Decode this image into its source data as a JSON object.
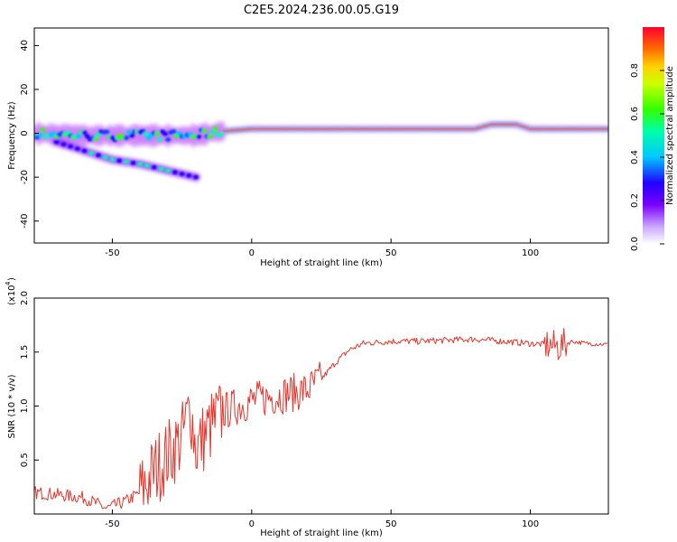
{
  "title": "C2E5.2024.236.00.05.G19",
  "colors": {
    "snr_line": "#e8332a",
    "spectrogram_ridge": "#ff2a1a",
    "spectrogram_halo": "#b84dff",
    "axis": "#000000"
  },
  "chart_data": [
    {
      "type": "heatmap",
      "xlabel": "Height of straight line (km)",
      "ylabel": "Frequency (Hz)",
      "xlim": [
        -78,
        128
      ],
      "ylim": [
        -50,
        48
      ],
      "xticks": [
        -50,
        0,
        50,
        100
      ],
      "yticks": [
        -40,
        -20,
        0,
        20,
        40
      ],
      "colorbar": {
        "label": "Normalized spectral amplitude",
        "range": [
          0.0,
          1.0
        ],
        "ticks": [
          "0.0",
          "0.2",
          "0.4",
          "0.6",
          "0.8"
        ],
        "colormap": "rainbow (violet to red)"
      },
      "ridges": [
        {
          "description": "main carrier",
          "x": [
            -78,
            -60,
            -40,
            -20,
            -10,
            0,
            20,
            40,
            60,
            80,
            86,
            95,
            100,
            128
          ],
          "y": [
            0,
            -1,
            -1,
            -1,
            1,
            2,
            2,
            2,
            2,
            2,
            4,
            4,
            2,
            2
          ]
        },
        {
          "description": "lower branch",
          "x": [
            -70,
            -60,
            -50,
            -40,
            -30,
            -20
          ],
          "y": [
            -4,
            -8,
            -12,
            -14,
            -17,
            -20
          ]
        }
      ],
      "grid": false
    },
    {
      "type": "line",
      "xlabel": "Height of straight line (km)",
      "ylabel": "SNR (10 * v/v)",
      "scale_label": "(x10",
      "scale_exponent": "4",
      "xlim": [
        -78,
        128
      ],
      "ylim": [
        0,
        2.0
      ],
      "xticks": [
        -50,
        0,
        50,
        100
      ],
      "yticks": [
        "0.5",
        "1.0",
        "1.5",
        "2.0"
      ],
      "grid": false,
      "series": [
        {
          "x": [
            -78,
            -70,
            -60,
            -52,
            -45,
            -40,
            -35,
            -30,
            -25,
            -22,
            -20,
            -15,
            -10,
            -5,
            0,
            10,
            20,
            25,
            30,
            35,
            40,
            50,
            60,
            70,
            80,
            90,
            100,
            105,
            110,
            113,
            115,
            120,
            128
          ],
          "y": [
            0.2,
            0.18,
            0.15,
            0.05,
            0.12,
            0.2,
            0.4,
            0.55,
            0.7,
            1.0,
            0.6,
            0.8,
            0.95,
            1.0,
            1.05,
            1.1,
            1.15,
            1.25,
            1.4,
            1.52,
            1.58,
            1.6,
            1.6,
            1.61,
            1.62,
            1.6,
            1.58,
            1.57,
            1.55,
            1.58,
            1.6,
            1.58,
            1.57
          ]
        }
      ]
    }
  ]
}
